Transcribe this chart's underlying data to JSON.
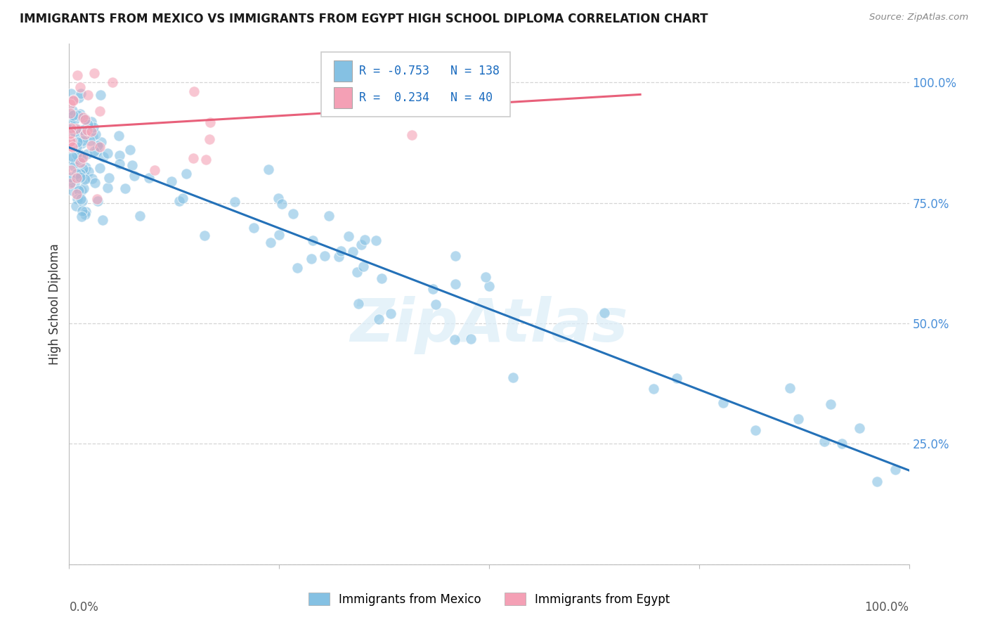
{
  "title": "IMMIGRANTS FROM MEXICO VS IMMIGRANTS FROM EGYPT HIGH SCHOOL DIPLOMA CORRELATION CHART",
  "source": "Source: ZipAtlas.com",
  "ylabel": "High School Diploma",
  "legend_mexico": "Immigrants from Mexico",
  "legend_egypt": "Immigrants from Egypt",
  "R_mexico": -0.753,
  "N_mexico": 138,
  "R_egypt": 0.234,
  "N_egypt": 40,
  "color_mexico": "#85c1e3",
  "color_egypt": "#f4a0b5",
  "line_mexico": "#2471b8",
  "line_egypt": "#e8607a",
  "watermark": "ZipAtlas",
  "mexico_line_x0": 0.0,
  "mexico_line_y0": 0.865,
  "mexico_line_x1": 1.0,
  "mexico_line_y1": 0.195,
  "egypt_line_x0": 0.0,
  "egypt_line_y0": 0.905,
  "egypt_line_x1": 0.68,
  "egypt_line_y1": 0.975,
  "yticks": [
    0.0,
    0.25,
    0.5,
    0.75,
    1.0
  ],
  "ytick_labels": [
    "",
    "25.0%",
    "50.0%",
    "75.0%",
    "100.0%"
  ],
  "xlim": [
    0.0,
    1.0
  ],
  "ylim": [
    0.0,
    1.08
  ]
}
